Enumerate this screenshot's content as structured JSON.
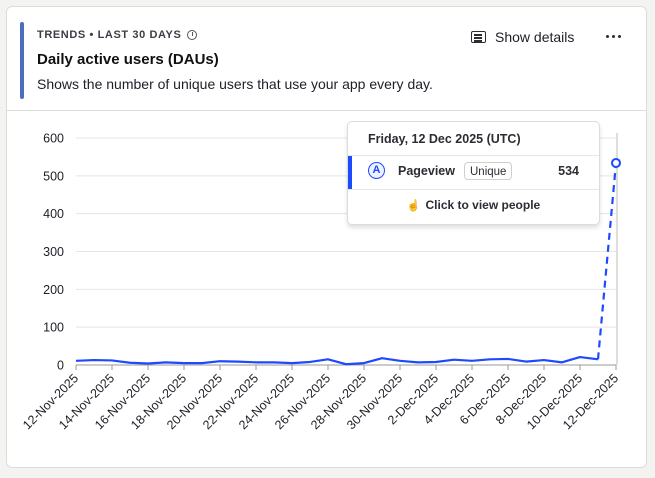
{
  "card": {
    "breadcrumb": "TRENDS • LAST 30 DAYS",
    "title": "Daily active users (DAUs)",
    "subtitle": "Shows the number of unique users that use your app every day.",
    "show_details_label": "Show details",
    "icons": {
      "info": "info-icon",
      "details": "details-icon",
      "more": "more-horizontal-icon",
      "pointer": "pointer-hand-icon"
    },
    "accent_color": "#4b6fc0"
  },
  "tooltip": {
    "date": "Friday, 12 Dec 2025 (UTC)",
    "series_badge": "A",
    "event": "Pageview",
    "math": "Unique",
    "value": "534",
    "action_label": "Click to view people"
  },
  "chart_data": {
    "type": "line",
    "title": "",
    "xlabel": "",
    "ylabel": "",
    "ylim": [
      0,
      600
    ],
    "yticks": [
      "0",
      "100",
      "200",
      "300",
      "400",
      "500",
      "600"
    ],
    "x_tick_labels": [
      "12-Nov-2025",
      "14-Nov-2025",
      "16-Nov-2025",
      "18-Nov-2025",
      "20-Nov-2025",
      "22-Nov-2025",
      "24-Nov-2025",
      "26-Nov-2025",
      "28-Nov-2025",
      "30-Nov-2025",
      "2-Dec-2025",
      "4-Dec-2025",
      "6-Dec-2025",
      "8-Dec-2025",
      "10-Dec-2025",
      "12-Dec-2025"
    ],
    "x": [
      "12-Nov-2025",
      "13-Nov-2025",
      "14-Nov-2025",
      "15-Nov-2025",
      "16-Nov-2025",
      "17-Nov-2025",
      "18-Nov-2025",
      "19-Nov-2025",
      "20-Nov-2025",
      "21-Nov-2025",
      "22-Nov-2025",
      "23-Nov-2025",
      "24-Nov-2025",
      "25-Nov-2025",
      "26-Nov-2025",
      "27-Nov-2025",
      "28-Nov-2025",
      "29-Nov-2025",
      "30-Nov-2025",
      "1-Dec-2025",
      "2-Dec-2025",
      "3-Dec-2025",
      "4-Dec-2025",
      "5-Dec-2025",
      "6-Dec-2025",
      "7-Dec-2025",
      "8-Dec-2025",
      "9-Dec-2025",
      "10-Dec-2025",
      "11-Dec-2025",
      "12-Dec-2025"
    ],
    "series": [
      {
        "name": "Pageview",
        "color": "#1d4aff",
        "values": [
          11,
          13,
          12,
          6,
          4,
          7,
          5,
          5,
          10,
          9,
          7,
          7,
          5,
          8,
          15,
          2,
          5,
          18,
          11,
          7,
          8,
          14,
          11,
          15,
          16,
          9,
          13,
          7,
          21,
          15,
          534
        ],
        "in_progress_from_index": 29
      }
    ],
    "grid": true,
    "legend": "none"
  }
}
